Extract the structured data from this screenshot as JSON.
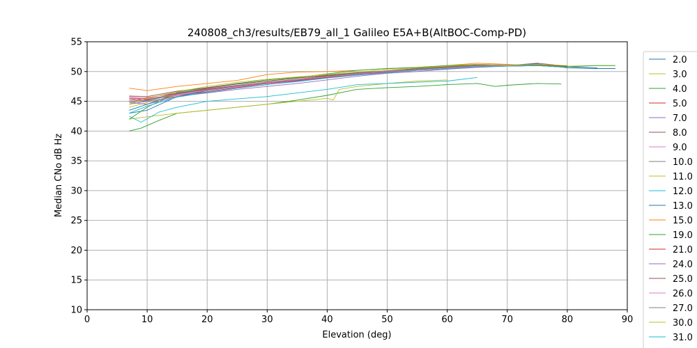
{
  "chart_data": {
    "type": "line",
    "title": "240808_ch3/results/EB79_all_1 Galileo E5A+B(AltBOC-Comp-PD)",
    "xlabel": "Elevation (deg)",
    "ylabel": "Median CNo dB Hz",
    "xlim": [
      0,
      90
    ],
    "ylim": [
      10,
      55
    ],
    "xticks": [
      0,
      10,
      20,
      30,
      40,
      50,
      60,
      70,
      80,
      90
    ],
    "yticks": [
      10,
      15,
      20,
      25,
      30,
      35,
      40,
      45,
      50,
      55
    ],
    "grid": true,
    "legend_position": "right",
    "series": [
      {
        "name": "2.0",
        "color": "#1f77b4",
        "x": [
          7,
          10,
          15,
          20,
          25,
          30,
          35,
          40,
          45,
          50,
          55,
          60,
          65,
          70,
          75,
          80,
          85
        ],
        "y": [
          43.5,
          44.5,
          46.3,
          47,
          47.6,
          48.2,
          48.7,
          49.2,
          49.7,
          50,
          50.3,
          50.5,
          50.8,
          50.9,
          51,
          50.8,
          50.6
        ]
      },
      {
        "name": "3.0",
        "color": "#bcbd22",
        "x": [
          7,
          10,
          15,
          20,
          25,
          30,
          35,
          40,
          45,
          50,
          55,
          60,
          65,
          70,
          75,
          80,
          85,
          88
        ],
        "y": [
          44,
          44.8,
          46,
          46.8,
          47.5,
          48,
          48.6,
          49.2,
          49.6,
          50,
          50.4,
          50.7,
          51,
          51.1,
          51.2,
          50.9,
          51,
          51
        ]
      },
      {
        "name": "4.0",
        "color": "#2ca02c",
        "x": [
          7,
          9,
          12,
          15,
          20,
          25,
          30,
          35,
          40,
          45,
          50,
          55,
          60,
          65,
          68,
          70,
          75,
          79
        ],
        "y": [
          40,
          40.5,
          41.8,
          43,
          43.5,
          44,
          44.5,
          45.2,
          46,
          47,
          47.3,
          47.5,
          47.8,
          48,
          47.5,
          47.7,
          48,
          47.9
        ]
      },
      {
        "name": "5.0",
        "color": "#d62728",
        "x": [
          7,
          10,
          15,
          20,
          25,
          30,
          35,
          40,
          45,
          50,
          55,
          60,
          65,
          70,
          75,
          80
        ],
        "y": [
          45,
          45.3,
          46,
          46.6,
          47.3,
          48,
          48.5,
          49,
          49.5,
          50,
          50.3,
          50.6,
          51,
          51,
          51.2,
          50.9
        ]
      },
      {
        "name": "7.0",
        "color": "#9467bd",
        "x": [
          7,
          10,
          15,
          20,
          25,
          30,
          35,
          40,
          45,
          50,
          55,
          60,
          65,
          70,
          75,
          80
        ],
        "y": [
          44.5,
          45,
          45.8,
          46.5,
          47.2,
          47.8,
          48.4,
          49,
          49.5,
          49.9,
          50.2,
          50.5,
          50.8,
          51,
          51.1,
          50.8
        ]
      },
      {
        "name": "8.0",
        "color": "#8c564b",
        "x": [
          7,
          10,
          15,
          20,
          25,
          30,
          35,
          40,
          45,
          50,
          55,
          60,
          65,
          70,
          75,
          80
        ],
        "y": [
          45.5,
          45.2,
          46.3,
          47.2,
          47.9,
          48.4,
          48.9,
          49.3,
          49.7,
          50.1,
          50.4,
          50.8,
          51.2,
          51,
          51.4,
          50.9
        ]
      },
      {
        "name": "9.0",
        "color": "#e377c2",
        "x": [
          7,
          10,
          15,
          20,
          25,
          30,
          35,
          40,
          45,
          50,
          55,
          60,
          65,
          70,
          75,
          80
        ],
        "y": [
          45.8,
          45.5,
          46,
          46.8,
          47.4,
          48,
          48.6,
          49.1,
          49.6,
          50,
          50.3,
          50.6,
          50.9,
          51,
          51.1,
          50.8
        ]
      },
      {
        "name": "10.0",
        "color": "#7f7f7f",
        "x": [
          7,
          10,
          15,
          20,
          25,
          30,
          35,
          40,
          45,
          50,
          55,
          60,
          65,
          70,
          75,
          80
        ],
        "y": [
          44.8,
          45.1,
          46.2,
          47,
          47.6,
          48.1,
          48.6,
          49.1,
          49.6,
          50.1,
          50.5,
          50.8,
          51,
          51.1,
          51,
          50.7
        ]
      },
      {
        "name": "11.0",
        "color": "#bcbd22",
        "x": [
          7,
          10,
          15,
          20,
          25,
          30,
          35,
          40,
          41,
          42,
          45,
          50,
          55,
          60
        ],
        "y": [
          42,
          42.4,
          43,
          43.5,
          44,
          44.5,
          45,
          45.5,
          45.2,
          47,
          47.5,
          48,
          48.4,
          48.6
        ]
      },
      {
        "name": "12.0",
        "color": "#17becf",
        "x": [
          7,
          9,
          12,
          15,
          20,
          25,
          30,
          35,
          40,
          45,
          50,
          55,
          60,
          65
        ],
        "y": [
          42.5,
          41.5,
          43.2,
          44,
          45,
          45.4,
          45.8,
          46.4,
          47,
          47.8,
          48,
          48.2,
          48.4,
          49
        ]
      },
      {
        "name": "13.0",
        "color": "#1f77b4",
        "x": [
          7,
          10,
          15,
          20,
          25,
          30,
          35,
          40,
          45,
          50,
          55,
          60,
          65,
          70,
          75,
          80,
          85,
          88
        ],
        "y": [
          43,
          43.5,
          45.8,
          46.8,
          47.5,
          48,
          48.5,
          49,
          49.7,
          50,
          50.3,
          50.6,
          51,
          51,
          51.3,
          50.6,
          50.5,
          50.5
        ]
      },
      {
        "name": "15.0",
        "color": "#ff7f0e",
        "x": [
          7,
          10,
          15,
          20,
          25,
          30,
          35,
          40,
          45,
          50,
          55,
          60,
          65,
          70,
          75,
          80
        ],
        "y": [
          47.2,
          46.8,
          47.5,
          48,
          48.5,
          49.5,
          49.9,
          50,
          50.2,
          50.5,
          50.7,
          51,
          51.4,
          51.2,
          51,
          50.8
        ]
      },
      {
        "name": "19.0",
        "color": "#2ca02c",
        "x": [
          7,
          10,
          15,
          20,
          25,
          30,
          35,
          40,
          45,
          50,
          55,
          60,
          65,
          70,
          75,
          80,
          85,
          88
        ],
        "y": [
          42,
          44,
          46.5,
          47.3,
          48,
          48.6,
          49,
          49.6,
          50.2,
          50.5,
          50.7,
          51,
          51.2,
          51.1,
          51,
          50.8,
          51,
          51
        ]
      },
      {
        "name": "21.0",
        "color": "#d62728",
        "x": [
          7,
          10,
          15,
          20,
          25,
          30,
          35,
          40,
          45,
          50,
          55,
          60,
          65,
          70,
          75,
          80
        ],
        "y": [
          45.2,
          45.6,
          46.4,
          47,
          47.5,
          48,
          48.5,
          49,
          49.4,
          49.9,
          50.2,
          50.5,
          50.9,
          50.9,
          51,
          50.7
        ]
      },
      {
        "name": "24.0",
        "color": "#9467bd",
        "x": [
          7,
          10,
          15,
          20,
          25,
          30,
          35,
          40,
          45,
          50,
          55,
          60,
          65,
          70,
          75,
          80
        ],
        "y": [
          44.8,
          44.5,
          45.8,
          46.4,
          47,
          47.5,
          48,
          48.6,
          49.2,
          49.7,
          50,
          50.4,
          50.7,
          50.9,
          51,
          50.7
        ]
      },
      {
        "name": "25.0",
        "color": "#8c564b",
        "x": [
          7,
          10,
          15,
          20,
          25,
          30,
          35,
          40,
          45,
          50,
          55,
          60,
          65,
          70,
          75,
          80
        ],
        "y": [
          45.9,
          45.8,
          46.7,
          47.3,
          47.9,
          48.4,
          48.9,
          49.4,
          49.8,
          50.1,
          50.5,
          50.8,
          51.1,
          51,
          51.1,
          50.9
        ]
      },
      {
        "name": "26.0",
        "color": "#e377c2",
        "x": [
          7,
          10,
          15,
          20,
          25,
          30,
          35,
          40,
          45,
          50,
          55,
          60,
          65,
          70,
          75,
          80
        ],
        "y": [
          45.6,
          45.4,
          46.1,
          46.9,
          47.5,
          48.1,
          48.6,
          49.1,
          49.6,
          50,
          50.3,
          50.6,
          50.9,
          51,
          51,
          50.7
        ]
      },
      {
        "name": "27.0",
        "color": "#7f7f7f",
        "x": [
          7,
          10,
          15,
          20,
          25,
          30,
          35,
          40,
          45,
          50,
          55,
          60,
          65,
          70,
          75,
          80
        ],
        "y": [
          45,
          45.2,
          46.4,
          47.1,
          47.7,
          48.2,
          48.7,
          49.2,
          49.7,
          50.1,
          50.4,
          50.7,
          51,
          51.1,
          51,
          50.7
        ]
      },
      {
        "name": "30.0",
        "color": "#bcbd22",
        "x": [
          7,
          10,
          15,
          20,
          25,
          30,
          35,
          40,
          45,
          50,
          55,
          60,
          65,
          70,
          75,
          80
        ],
        "y": [
          44.5,
          45.5,
          46.6,
          47.5,
          48.2,
          48.7,
          49.1,
          49.5,
          49.9,
          50.3,
          50.6,
          50.9,
          51.2,
          51.1,
          51.2,
          51
        ]
      },
      {
        "name": "31.0",
        "color": "#17becf",
        "x": [
          7,
          10,
          15,
          20,
          25,
          30,
          35,
          40,
          45,
          50,
          55,
          60,
          65,
          70,
          75,
          80
        ],
        "y": [
          43,
          44.2,
          45.7,
          46.5,
          47.2,
          47.8,
          48.3,
          48.9,
          49.4,
          49.8,
          50.2,
          50.5,
          50.8,
          50.9,
          51,
          50.7
        ]
      }
    ]
  }
}
